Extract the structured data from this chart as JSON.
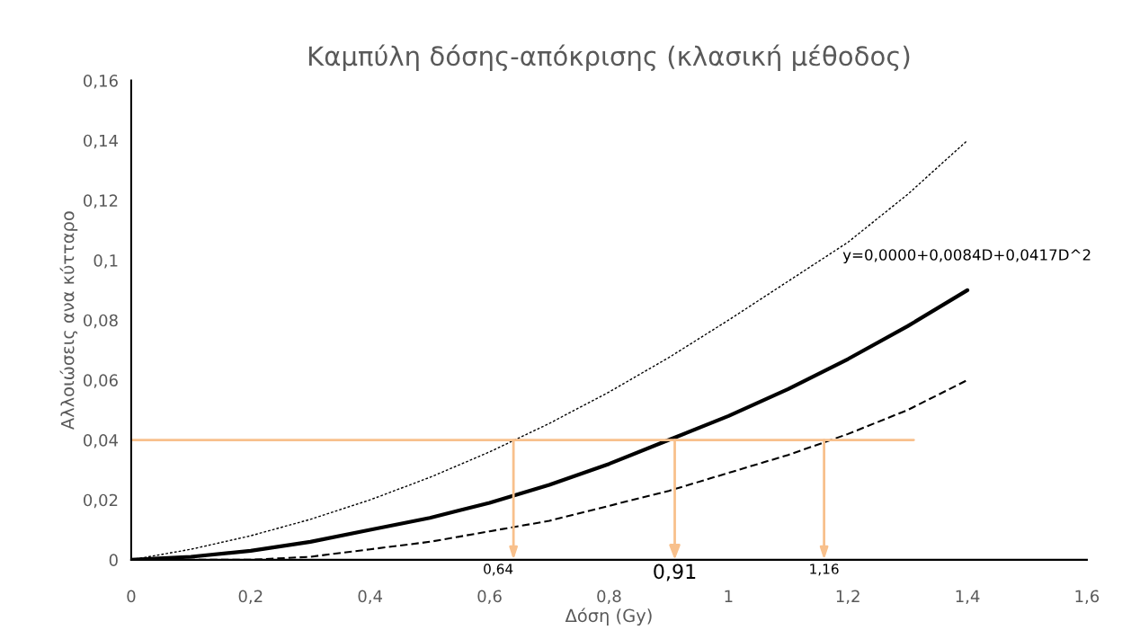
{
  "chart_data": {
    "type": "line",
    "title": "Καμπύλη δόσης-απόκρισης (κλασική μέθοδος)",
    "xlabel": "Δόση (Gy)",
    "ylabel": "Αλλοιώσεις ανα κύτταρο",
    "x": [
      0,
      0.1,
      0.2,
      0.3,
      0.4,
      0.5,
      0.6,
      0.7,
      0.8,
      0.9,
      1.0,
      1.1,
      1.2,
      1.3,
      1.4
    ],
    "series": [
      {
        "color": "#000000",
        "line_style": "dotted",
        "values": [
          0,
          0.0035,
          0.008,
          0.0135,
          0.02,
          0.0275,
          0.036,
          0.0455,
          0.056,
          0.0675,
          0.08,
          0.093,
          0.106,
          0.122,
          0.14
        ]
      },
      {
        "color": "#000000",
        "line_style": "solid",
        "values": [
          0,
          0.001,
          0.003,
          0.006,
          0.01,
          0.014,
          0.019,
          0.025,
          0.032,
          0.04,
          0.048,
          0.057,
          0.067,
          0.078,
          0.09
        ]
      },
      {
        "color": "#000000",
        "line_style": "dashed",
        "values": [
          0,
          0,
          0,
          0.001,
          0.0035,
          0.006,
          0.0095,
          0.013,
          0.018,
          0.023,
          0.029,
          0.035,
          0.042,
          0.05,
          0.06
        ]
      },
      {
        "color": "#f8c08c",
        "line_style": "solid",
        "x": [
          0,
          1.31
        ],
        "values": [
          0.04,
          0.04
        ]
      }
    ],
    "annotations": [
      {
        "text": "y=0,0000+0,0084D+0,0417D^2",
        "x": 1.4,
        "y": 0.09
      },
      {
        "text": "0,64",
        "x": 0.64,
        "y": 0.04
      },
      {
        "text": "0,91",
        "x": 0.91,
        "y": 0.04
      },
      {
        "text": "1,16",
        "x": 1.16,
        "y": 0.04
      }
    ],
    "xlim": [
      0,
      1.6
    ],
    "ylim": [
      0,
      0.16
    ],
    "xticks": [
      0,
      {
        "value": 0.2,
        "label": "0,2"
      },
      {
        "value": 0.4,
        "label": "0,4"
      },
      {
        "value": 0.6,
        "label": "0,6"
      },
      {
        "value": 0.8,
        "label": "0,8"
      },
      1,
      {
        "value": 1.2,
        "label": "1,2"
      },
      {
        "value": 1.4,
        "label": "1,4"
      },
      {
        "value": 1.6,
        "label": "1,6"
      }
    ],
    "yticks": [
      0,
      {
        "value": 0.02,
        "label": "0,02"
      },
      {
        "value": 0.04,
        "label": "0,04"
      },
      {
        "value": 0.06,
        "label": "0,06"
      },
      {
        "value": 0.08,
        "label": "0,08"
      },
      {
        "value": 0.1,
        "label": "0,1"
      },
      {
        "value": 0.12,
        "label": "0,12"
      },
      {
        "value": 0.14,
        "label": "0,14"
      },
      {
        "value": 0.16,
        "label": "0,16"
      }
    ],
    "grid": false,
    "legend": false,
    "marker": "none"
  }
}
